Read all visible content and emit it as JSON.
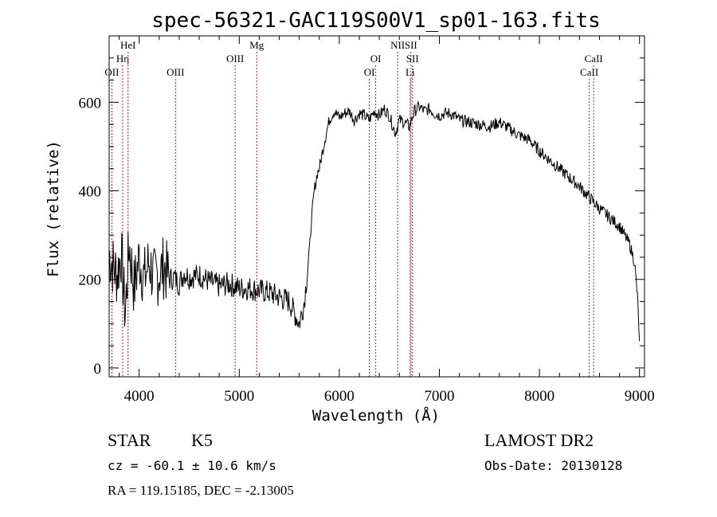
{
  "chart_data": {
    "type": "line",
    "title": "spec-56321-GAC119S00V1_sp01-163.fits",
    "xlabel": "Wavelength (Å)",
    "ylabel": "Flux (relative)",
    "xlim": [
      3700,
      9050
    ],
    "ylim": [
      -20,
      750
    ],
    "xticks": [
      4000,
      5000,
      6000,
      7000,
      8000,
      9000
    ],
    "xtick_labels": [
      "4000",
      "5000",
      "6000",
      "7000",
      "8000",
      "9000"
    ],
    "yticks": [
      0,
      200,
      400,
      600
    ],
    "ytick_labels": [
      "0",
      "200",
      "400",
      "600"
    ],
    "grid": false,
    "series": [
      {
        "x": [
          3700,
          3740,
          3780,
          3820,
          3860,
          3900,
          3950,
          4000,
          4050,
          4100,
          4150,
          4200,
          4250,
          4300,
          4350,
          4400,
          4450,
          4500,
          4600,
          4700,
          4800,
          4900,
          5000,
          5100,
          5200,
          5300,
          5400,
          5500,
          5600,
          5650,
          5700,
          5720,
          5750,
          5780,
          5800,
          5850,
          5900,
          5950,
          6000,
          6050,
          6100,
          6150,
          6200,
          6250,
          6300,
          6350,
          6400,
          6450,
          6500,
          6560,
          6600,
          6650,
          6700,
          6750,
          6800,
          6850,
          6900,
          6950,
          7000,
          7050,
          7100,
          7150,
          7200,
          7300,
          7400,
          7500,
          7600,
          7700,
          7800,
          7900,
          8000,
          8100,
          8200,
          8300,
          8400,
          8500,
          8600,
          8700,
          8800,
          8900,
          8950,
          8980,
          9000
        ],
        "y": [
          260,
          230,
          210,
          260,
          120,
          280,
          180,
          250,
          200,
          240,
          200,
          215,
          230,
          200,
          205,
          190,
          215,
          205,
          210,
          195,
          185,
          190,
          180,
          180,
          175,
          170,
          160,
          150,
          100,
          150,
          260,
          330,
          400,
          440,
          450,
          510,
          560,
          580,
          565,
          575,
          580,
          560,
          575,
          570,
          560,
          580,
          570,
          585,
          570,
          530,
          560,
          555,
          545,
          580,
          590,
          580,
          585,
          575,
          570,
          575,
          575,
          570,
          560,
          555,
          550,
          545,
          555,
          540,
          525,
          515,
          490,
          470,
          450,
          430,
          410,
          385,
          360,
          340,
          320,
          280,
          240,
          160,
          60
        ]
      }
    ],
    "spectral_lines": [
      {
        "name": "OII",
        "x": 3727,
        "row": 3
      },
      {
        "name": "Hη",
        "x": 3835,
        "row": 2
      },
      {
        "name": "HeI",
        "x": 3889,
        "row": 1
      },
      {
        "name": "OIII",
        "x": 4363,
        "row": 3
      },
      {
        "name": "OIII",
        "x": 4959,
        "row": 2
      },
      {
        "name": "Mg",
        "x": 5175,
        "row": 1
      },
      {
        "name": "OI",
        "x": 6300,
        "row": 3
      },
      {
        "name": "OI",
        "x": 6364,
        "row": 2
      },
      {
        "name": "NII",
        "x": 6583,
        "row": 1
      },
      {
        "name": "SII",
        "x": 6716,
        "row": 1
      },
      {
        "name": "SII",
        "x": 6731,
        "row": 2
      },
      {
        "name": "Li",
        "x": 6708,
        "row": 3
      },
      {
        "name": "CaII",
        "x": 8498,
        "row": 3
      },
      {
        "name": "CaII",
        "x": 8542,
        "row": 2
      }
    ]
  },
  "info": {
    "object_class": "STAR",
    "subclass": "K5",
    "survey": "LAMOST DR2",
    "cz": "cz = -60.1 ± 10.6 km/s",
    "obs_date": "Obs-Date: 20130128",
    "radec": "RA = 119.15185, DEC =  -2.13005"
  }
}
